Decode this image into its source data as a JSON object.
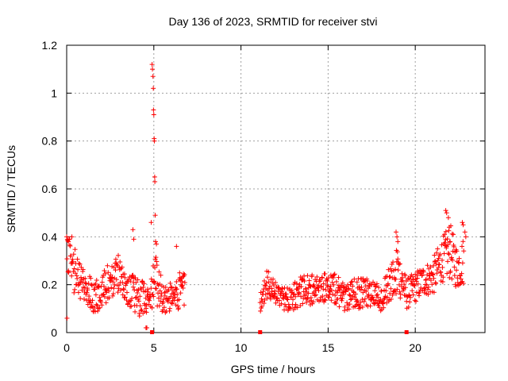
{
  "chart_data": {
    "type": "scatter",
    "title": "Day 136 of 2023, SRMTID for receiver stvi",
    "xlabel": "GPS time / hours",
    "ylabel": "SRMTID / TECUs",
    "xlim": [
      0,
      24
    ],
    "ylim": [
      0,
      1.2
    ],
    "x_ticks": [
      0,
      5,
      10,
      15,
      20
    ],
    "x_tick_labels": [
      "0",
      "5",
      "10",
      "15",
      "20"
    ],
    "y_ticks": [
      0,
      0.2,
      0.4,
      0.6,
      0.8,
      1.0,
      1.2
    ],
    "y_tick_labels": [
      "0",
      "0.2",
      "0.4",
      "0.6",
      "0.8",
      "1",
      "1.2"
    ],
    "grid": true,
    "marker": "plus",
    "color": "#ff0000",
    "series": [
      {
        "name": "SRMTID",
        "profile": [
          [
            0.0,
            0.32,
            0.08
          ],
          [
            0.3,
            0.28,
            0.08
          ],
          [
            0.6,
            0.24,
            0.07
          ],
          [
            1.0,
            0.2,
            0.06
          ],
          [
            1.5,
            0.15,
            0.05
          ],
          [
            2.0,
            0.17,
            0.06
          ],
          [
            2.5,
            0.22,
            0.06
          ],
          [
            3.0,
            0.25,
            0.06
          ],
          [
            3.5,
            0.18,
            0.05
          ],
          [
            3.9,
            0.16,
            0.06
          ],
          [
            4.3,
            0.14,
            0.06
          ],
          [
            4.7,
            0.13,
            0.05
          ],
          [
            5.1,
            0.22,
            0.08
          ],
          [
            5.5,
            0.15,
            0.05
          ],
          [
            6.0,
            0.14,
            0.05
          ],
          [
            6.5,
            0.18,
            0.06
          ],
          [
            6.8,
            0.17,
            0.06
          ],
          [
            11.1,
            0.13,
            0.04
          ],
          [
            11.5,
            0.2,
            0.05
          ],
          [
            12.0,
            0.16,
            0.04
          ],
          [
            12.5,
            0.14,
            0.04
          ],
          [
            13.0,
            0.16,
            0.05
          ],
          [
            13.5,
            0.17,
            0.05
          ],
          [
            14.0,
            0.18,
            0.05
          ],
          [
            14.5,
            0.17,
            0.05
          ],
          [
            15.0,
            0.2,
            0.05
          ],
          [
            15.5,
            0.18,
            0.05
          ],
          [
            16.0,
            0.14,
            0.04
          ],
          [
            16.5,
            0.17,
            0.05
          ],
          [
            17.0,
            0.16,
            0.05
          ],
          [
            17.5,
            0.17,
            0.05
          ],
          [
            18.0,
            0.14,
            0.04
          ],
          [
            18.5,
            0.2,
            0.06
          ],
          [
            19.0,
            0.26,
            0.08
          ],
          [
            19.5,
            0.16,
            0.05
          ],
          [
            20.0,
            0.19,
            0.05
          ],
          [
            20.5,
            0.22,
            0.05
          ],
          [
            21.0,
            0.23,
            0.06
          ],
          [
            21.5,
            0.3,
            0.07
          ],
          [
            22.0,
            0.34,
            0.09
          ],
          [
            22.4,
            0.27,
            0.07
          ],
          [
            22.8,
            0.3,
            0.08
          ]
        ],
        "extra_points": [
          [
            0.02,
            0.06
          ],
          [
            0.1,
            0.38
          ],
          [
            0.3,
            0.4
          ],
          [
            3.8,
            0.43
          ],
          [
            3.85,
            0.39
          ],
          [
            4.9,
            1.12
          ],
          [
            4.92,
            1.1
          ],
          [
            4.95,
            1.07
          ],
          [
            4.97,
            1.02
          ],
          [
            4.98,
            0.93
          ],
          [
            5.0,
            0.91
          ],
          [
            5.02,
            0.81
          ],
          [
            5.03,
            0.8
          ],
          [
            5.05,
            0.65
          ],
          [
            5.06,
            0.63
          ],
          [
            5.08,
            0.49
          ],
          [
            4.85,
            0.46
          ],
          [
            5.1,
            0.38
          ],
          [
            5.15,
            0.37
          ],
          [
            6.3,
            0.36
          ],
          [
            4.6,
            0.02
          ],
          [
            4.55,
            0.02
          ],
          [
            18.9,
            0.42
          ],
          [
            18.95,
            0.4
          ],
          [
            19.0,
            0.38
          ],
          [
            21.75,
            0.51
          ],
          [
            21.8,
            0.5
          ],
          [
            21.9,
            0.48
          ],
          [
            21.95,
            0.44
          ],
          [
            22.7,
            0.46
          ],
          [
            22.75,
            0.45
          ],
          [
            22.85,
            0.42
          ],
          [
            22.9,
            0.4
          ],
          [
            22.0,
            0.38
          ]
        ],
        "flagged_points": [
          [
            4.9,
            0.0
          ],
          [
            11.1,
            0.0
          ],
          [
            19.5,
            0.0
          ]
        ]
      }
    ]
  }
}
